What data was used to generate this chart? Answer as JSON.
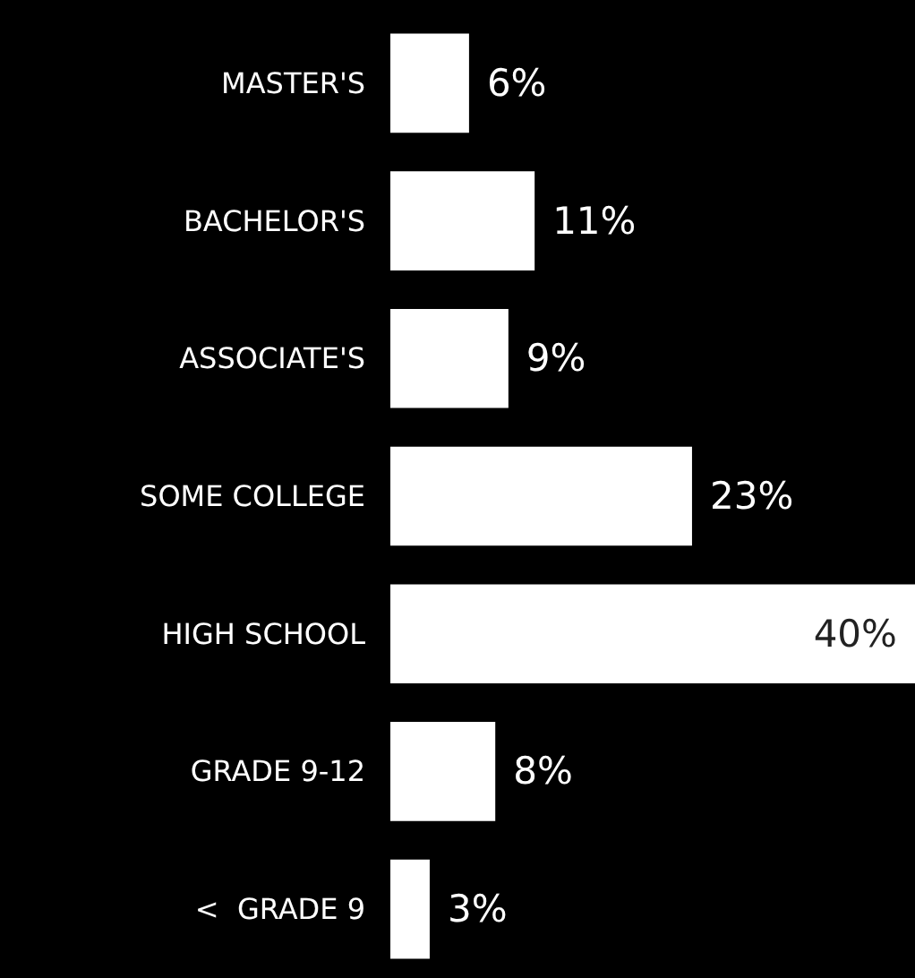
{
  "chart_data": {
    "type": "bar",
    "orientation": "horizontal",
    "categories": [
      "MASTER'S",
      "BACHELOR'S",
      "ASSOCIATE'S",
      "SOME COLLEGE",
      "HIGH SCHOOL",
      "GRADE 9-12",
      "<  GRADE 9"
    ],
    "values": [
      6,
      11,
      9,
      23,
      40,
      8,
      3
    ],
    "value_labels": [
      "6%",
      "11%",
      "9%",
      "23%",
      "40%",
      "8%",
      "3%"
    ],
    "color": "#ffffff"
  }
}
